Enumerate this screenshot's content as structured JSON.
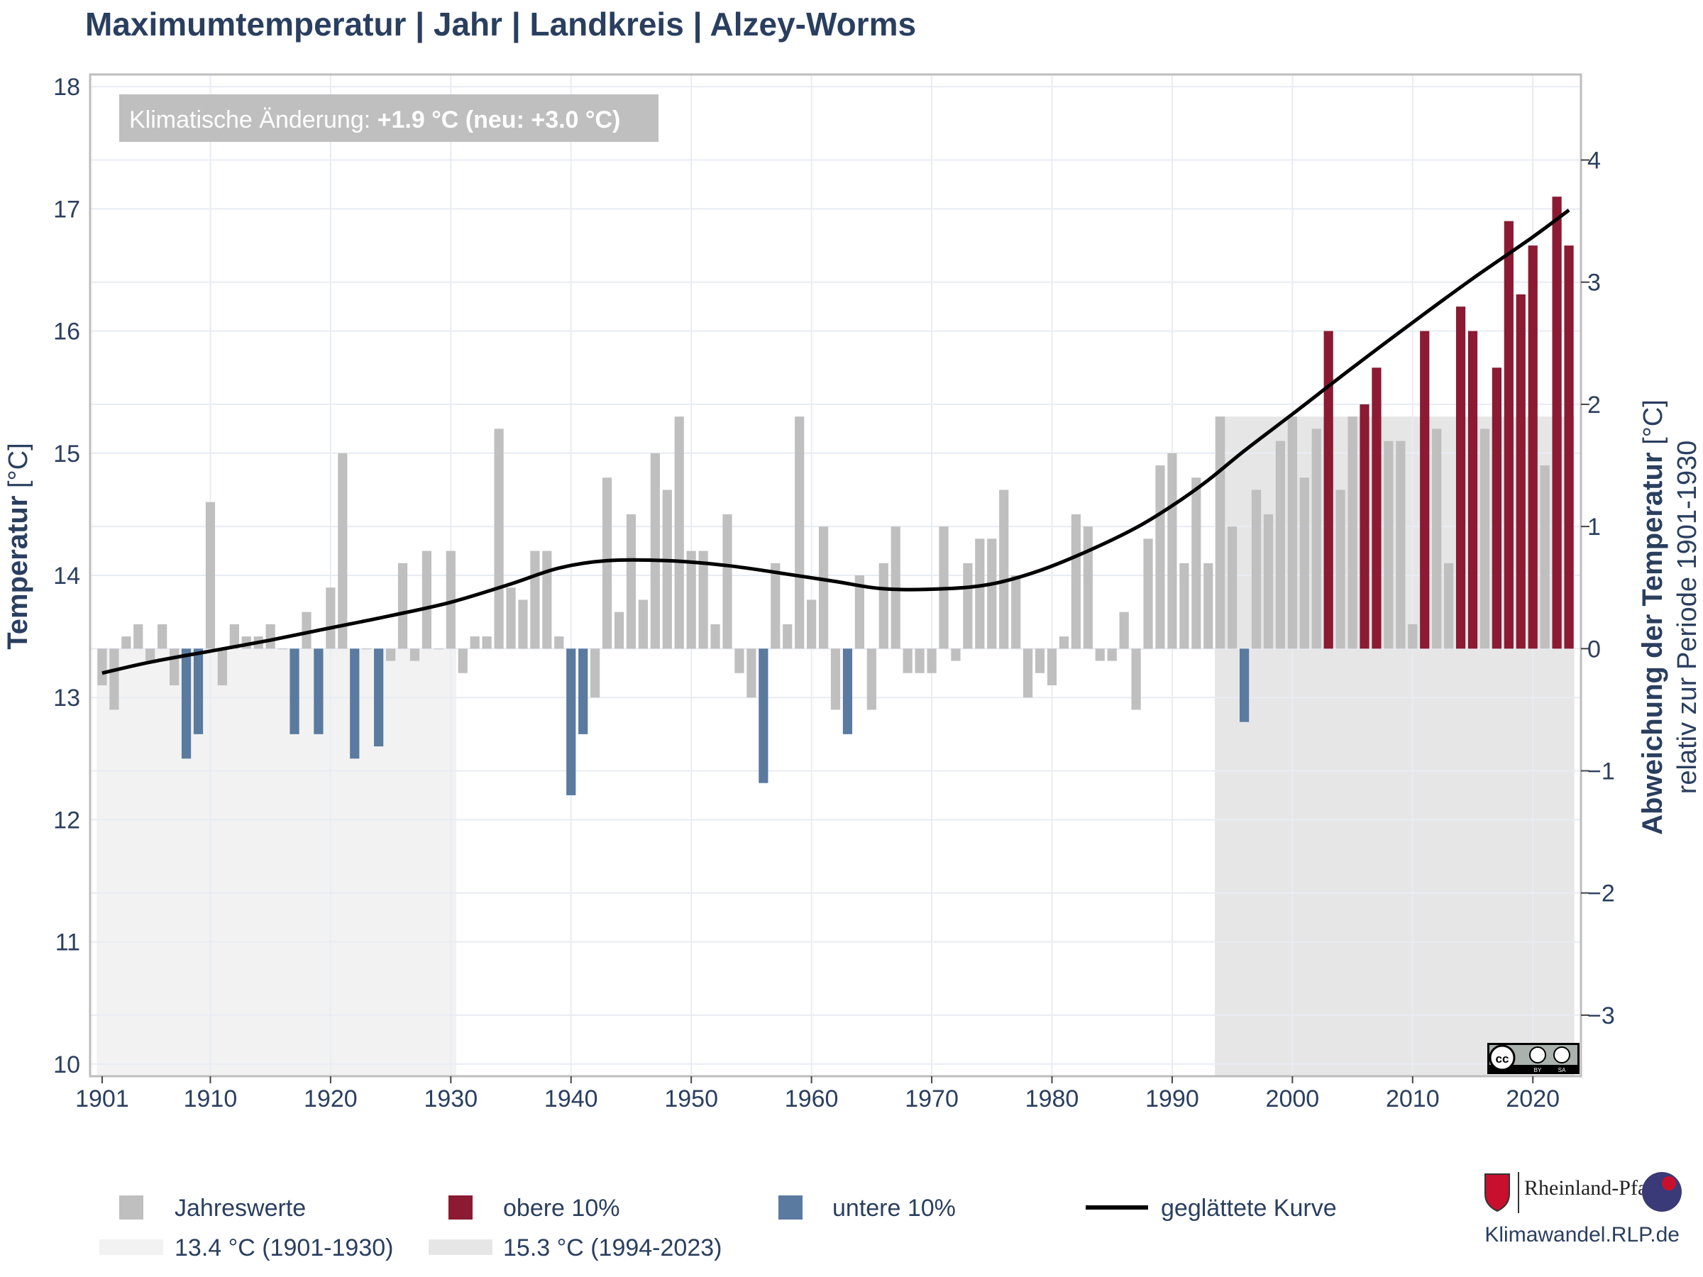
{
  "title": "Maximumtemperatur | Jahr | Landkreis | Alzey-Worms",
  "annotation": {
    "prefix": "Klimatische Änderung: ",
    "value": "+1.9 °C (neu: +3.0 °C)"
  },
  "left_axis_title": {
    "bold": "Temperatur",
    "unit": " [°C]"
  },
  "right_axis_title": {
    "bold": "Abweichung der Temperatur",
    "unit": " [°C]",
    "sub": "relativ zur Periode 1901-1930"
  },
  "legend": {
    "jahreswerte": "Jahreswerte",
    "obere": "obere 10%",
    "untere": "untere 10%",
    "kurve": "geglättete Kurve",
    "ref_old": "13.4 °C (1901-1930)",
    "ref_new": "15.3 °C (1994-2023)"
  },
  "footer": {
    "brand": "Rheinland-Pfalz",
    "site": "Klimawandel.RLP.de",
    "cc_label": "cc by sa"
  },
  "colors": {
    "normal": "#bfbfbf",
    "upper": "#8b1a32",
    "lower": "#5a7aa0",
    "ref_old": "#f2f2f2",
    "ref_new": "#e6e6e6",
    "curve": "#000000",
    "annotation_bg": "#bfbfbf"
  },
  "chart_data": {
    "type": "bar",
    "baseline": 13.4,
    "ylim": [
      9.9,
      18.1
    ],
    "ylim_right": [
      -3.5,
      4.7
    ],
    "xlim": [
      1900.0,
      2024.0
    ],
    "y_ticks": [
      10,
      11,
      12,
      13,
      14,
      15,
      16,
      17,
      18
    ],
    "y2_ticks": [
      -3,
      -2,
      -1,
      0,
      1,
      2,
      3,
      4
    ],
    "x_ticks": [
      1901,
      1910,
      1920,
      1930,
      1940,
      1950,
      1960,
      1970,
      1980,
      1990,
      2000,
      2010,
      2020
    ],
    "reference_periods": [
      {
        "start": 1901,
        "end": 1930,
        "value": 13.4
      },
      {
        "start": 1994,
        "end": 2023,
        "value": 15.3
      }
    ],
    "years": [
      1901,
      1902,
      1903,
      1904,
      1905,
      1906,
      1907,
      1908,
      1909,
      1910,
      1911,
      1912,
      1913,
      1914,
      1915,
      1916,
      1917,
      1918,
      1919,
      1920,
      1921,
      1922,
      1923,
      1924,
      1925,
      1926,
      1927,
      1928,
      1929,
      1930,
      1931,
      1932,
      1933,
      1934,
      1935,
      1936,
      1937,
      1938,
      1939,
      1940,
      1941,
      1942,
      1943,
      1944,
      1945,
      1946,
      1947,
      1948,
      1949,
      1950,
      1951,
      1952,
      1953,
      1954,
      1955,
      1956,
      1957,
      1958,
      1959,
      1960,
      1961,
      1962,
      1963,
      1964,
      1965,
      1966,
      1967,
      1968,
      1969,
      1970,
      1971,
      1972,
      1973,
      1974,
      1975,
      1976,
      1977,
      1978,
      1979,
      1980,
      1981,
      1982,
      1983,
      1984,
      1985,
      1986,
      1987,
      1988,
      1989,
      1990,
      1991,
      1992,
      1993,
      1994,
      1995,
      1996,
      1997,
      1998,
      1999,
      2000,
      2001,
      2002,
      2003,
      2004,
      2005,
      2006,
      2007,
      2008,
      2009,
      2010,
      2011,
      2012,
      2013,
      2014,
      2015,
      2016,
      2017,
      2018,
      2019,
      2020,
      2021,
      2022,
      2023
    ],
    "values": [
      13.1,
      12.9,
      13.5,
      13.6,
      13.3,
      13.6,
      13.1,
      12.5,
      12.7,
      14.6,
      13.1,
      13.6,
      13.5,
      13.5,
      13.6,
      13.4,
      12.7,
      13.7,
      12.7,
      13.9,
      15.0,
      12.5,
      13.4,
      12.6,
      13.3,
      14.1,
      13.3,
      14.2,
      13.4,
      14.2,
      13.2,
      13.5,
      13.5,
      15.2,
      13.9,
      13.8,
      14.2,
      14.2,
      13.5,
      12.2,
      12.7,
      13.0,
      14.8,
      13.7,
      14.5,
      13.8,
      15.0,
      14.7,
      15.3,
      14.2,
      14.2,
      13.6,
      14.5,
      13.2,
      13.0,
      12.3,
      14.1,
      13.6,
      15.3,
      13.8,
      14.4,
      12.9,
      12.7,
      14.0,
      12.9,
      14.1,
      14.4,
      13.2,
      13.2,
      13.2,
      14.4,
      13.3,
      14.1,
      14.3,
      14.3,
      14.7,
      14.0,
      13.0,
      13.2,
      13.1,
      13.5,
      14.5,
      14.4,
      13.3,
      13.3,
      13.7,
      12.9,
      14.3,
      14.9,
      15.0,
      14.1,
      14.8,
      14.1,
      15.3,
      14.4,
      12.8,
      14.7,
      14.5,
      15.1,
      15.3,
      14.8,
      15.2,
      16.0,
      14.7,
      15.3,
      15.4,
      15.7,
      15.1,
      15.1,
      13.6,
      16.0,
      15.2,
      14.1,
      16.2,
      16.0,
      15.2,
      15.7,
      16.9,
      16.3,
      16.7,
      14.9,
      17.1,
      16.7
    ],
    "categories": [
      "n",
      "n",
      "n",
      "n",
      "n",
      "n",
      "n",
      "l",
      "l",
      "n",
      "n",
      "n",
      "n",
      "n",
      "n",
      "n",
      "l",
      "n",
      "l",
      "n",
      "n",
      "l",
      "n",
      "l",
      "n",
      "n",
      "n",
      "n",
      "n",
      "n",
      "n",
      "n",
      "n",
      "n",
      "n",
      "n",
      "n",
      "n",
      "n",
      "l",
      "l",
      "n",
      "n",
      "n",
      "n",
      "n",
      "n",
      "n",
      "n",
      "n",
      "n",
      "n",
      "n",
      "n",
      "n",
      "l",
      "n",
      "n",
      "n",
      "n",
      "n",
      "n",
      "l",
      "n",
      "n",
      "n",
      "n",
      "n",
      "n",
      "n",
      "n",
      "n",
      "n",
      "n",
      "n",
      "n",
      "n",
      "n",
      "n",
      "n",
      "n",
      "n",
      "n",
      "n",
      "n",
      "n",
      "n",
      "n",
      "n",
      "n",
      "n",
      "n",
      "n",
      "n",
      "n",
      "l",
      "n",
      "n",
      "n",
      "n",
      "n",
      "n",
      "u",
      "n",
      "n",
      "u",
      "u",
      "n",
      "n",
      "n",
      "u",
      "n",
      "n",
      "u",
      "u",
      "n",
      "u",
      "u",
      "u",
      "u",
      "n",
      "u",
      "u"
    ],
    "smooth_x": [
      1901,
      1905,
      1910,
      1915,
      1920,
      1925,
      1930,
      1935,
      1939,
      1943,
      1948,
      1953,
      1958,
      1962,
      1966,
      1971,
      1975,
      1979,
      1983,
      1987,
      1990,
      1993,
      1996,
      2000,
      2005,
      2010,
      2015,
      2020,
      2023
    ],
    "smooth_y": [
      13.2,
      13.29,
      13.38,
      13.47,
      13.57,
      13.67,
      13.78,
      13.93,
      14.06,
      14.12,
      14.12,
      14.08,
      14.01,
      13.95,
      13.89,
      13.89,
      13.93,
      14.04,
      14.2,
      14.39,
      14.57,
      14.78,
      15.02,
      15.32,
      15.7,
      16.07,
      16.43,
      16.77,
      16.99
    ]
  }
}
